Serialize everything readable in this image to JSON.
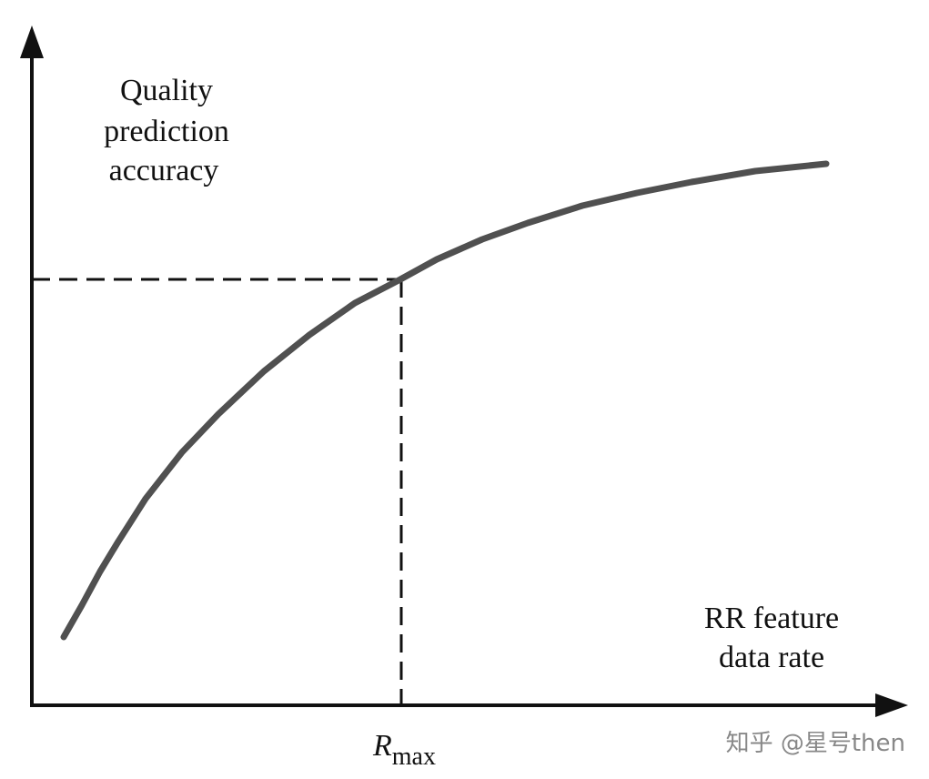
{
  "y_axis_label": [
    "Quality",
    "prediction",
    "accuracy"
  ],
  "x_axis_label": [
    "RR feature",
    "data rate"
  ],
  "marker_label": {
    "main": "R",
    "subscript": "max"
  },
  "watermark": "知乎 @星号then"
}
